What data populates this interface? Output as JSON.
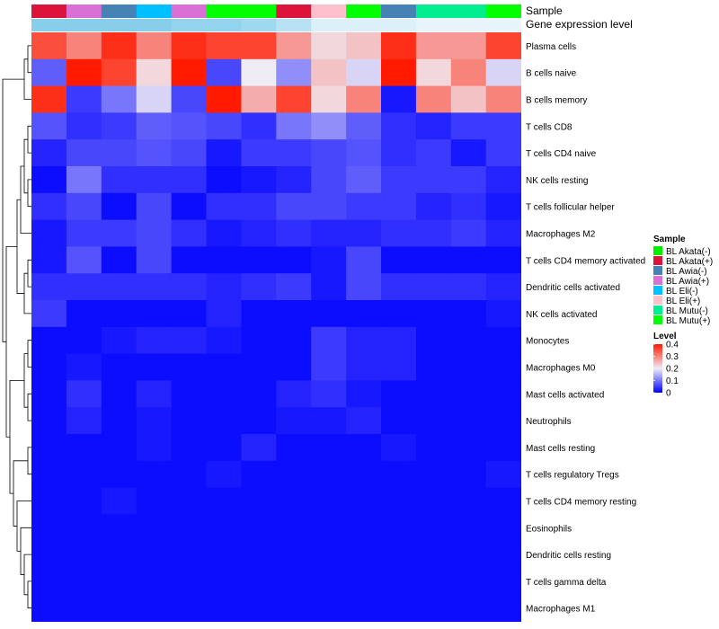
{
  "chart_data": {
    "type": "heatmap",
    "title": "",
    "annotation_labels": {
      "sample": "Sample",
      "expression": "Gene expression level"
    },
    "columns": [
      "BL Akata(+)",
      "BL Awia(+)",
      "BL Awia(-)",
      "BL Eli(-)",
      "BL Awia(+)",
      "BL Mutu(+)",
      "BL Mutu(+)",
      "BL Akata(+)",
      "BL Eli(+)",
      "BL Mutu(+)",
      "BL Awia(-)",
      "BL Mutu(-)",
      "BL Mutu(-)",
      "BL Mutu(+)"
    ],
    "column_expression": [
      0.2,
      0.2,
      0.2,
      0.2,
      0.19,
      0.19,
      0.18,
      0.16,
      0.13,
      0.13,
      0.13,
      0.12,
      0.12,
      0.12
    ],
    "rows": [
      "Plasma cells",
      "B cells naive",
      "B cells memory",
      "T cells CD8",
      "T cells CD4 naive",
      "NK cells resting",
      "T cells follicular helper",
      "Macrophages M2",
      "T cells CD4 memory activated",
      "Dendritic cells activated",
      "NK cells activated",
      "Monocytes",
      "Macrophages M0",
      "Mast cells activated",
      "Neutrophils",
      "Mast cells resting",
      "T cells regulatory  Tregs",
      "T cells CD4 memory resting",
      "Eosinophils",
      "Dendritic cells resting",
      "T cells gamma delta",
      "Macrophages M1"
    ],
    "values": [
      [
        0.35,
        0.3,
        0.38,
        0.3,
        0.38,
        0.36,
        0.36,
        0.28,
        0.22,
        0.24,
        0.38,
        0.28,
        0.28,
        0.36
      ],
      [
        0.08,
        0.4,
        0.36,
        0.22,
        0.4,
        0.06,
        0.2,
        0.12,
        0.24,
        0.18,
        0.4,
        0.22,
        0.3,
        0.18
      ],
      [
        0.38,
        0.05,
        0.1,
        0.18,
        0.06,
        0.4,
        0.26,
        0.36,
        0.22,
        0.3,
        0.02,
        0.3,
        0.24,
        0.3
      ],
      [
        0.07,
        0.04,
        0.05,
        0.08,
        0.07,
        0.06,
        0.04,
        0.1,
        0.12,
        0.08,
        0.04,
        0.03,
        0.05,
        0.05
      ],
      [
        0.03,
        0.06,
        0.06,
        0.07,
        0.06,
        0.02,
        0.05,
        0.05,
        0.06,
        0.07,
        0.04,
        0.05,
        0.02,
        0.05
      ],
      [
        0.01,
        0.1,
        0.04,
        0.04,
        0.04,
        0.01,
        0.02,
        0.03,
        0.06,
        0.08,
        0.05,
        0.05,
        0.05,
        0.03
      ],
      [
        0.04,
        0.06,
        0.01,
        0.06,
        0.01,
        0.04,
        0.04,
        0.06,
        0.06,
        0.05,
        0.05,
        0.03,
        0.04,
        0.02
      ],
      [
        0.02,
        0.05,
        0.05,
        0.06,
        0.04,
        0.02,
        0.03,
        0.04,
        0.03,
        0.03,
        0.04,
        0.04,
        0.05,
        0.03
      ],
      [
        0.02,
        0.07,
        0.01,
        0.06,
        0.01,
        0.01,
        0.01,
        0.01,
        0.02,
        0.06,
        0.01,
        0.01,
        0.01,
        0.01
      ],
      [
        0.04,
        0.04,
        0.04,
        0.04,
        0.04,
        0.03,
        0.04,
        0.05,
        0.02,
        0.06,
        0.04,
        0.04,
        0.04,
        0.03
      ],
      [
        0.05,
        0.01,
        0.01,
        0.01,
        0.01,
        0.03,
        0.01,
        0.01,
        0.01,
        0.01,
        0.01,
        0.01,
        0.01,
        0.02
      ],
      [
        0.01,
        0.01,
        0.02,
        0.03,
        0.03,
        0.02,
        0.01,
        0.01,
        0.05,
        0.03,
        0.03,
        0.01,
        0.01,
        0.01
      ],
      [
        0.01,
        0.02,
        0.01,
        0.01,
        0.01,
        0.01,
        0.01,
        0.01,
        0.05,
        0.03,
        0.03,
        0.01,
        0.01,
        0.01
      ],
      [
        0.01,
        0.04,
        0.01,
        0.03,
        0.01,
        0.01,
        0.01,
        0.03,
        0.04,
        0.02,
        0.01,
        0.01,
        0.01,
        0.01
      ],
      [
        0.01,
        0.03,
        0.01,
        0.02,
        0.01,
        0.01,
        0.01,
        0.02,
        0.02,
        0.03,
        0.01,
        0.01,
        0.01,
        0.01
      ],
      [
        0.01,
        0.01,
        0.01,
        0.02,
        0.01,
        0.01,
        0.03,
        0.01,
        0.01,
        0.01,
        0.02,
        0.01,
        0.01,
        0.01
      ],
      [
        0.01,
        0.01,
        0.01,
        0.01,
        0.01,
        0.02,
        0.01,
        0.01,
        0.01,
        0.01,
        0.01,
        0.01,
        0.01,
        0.02
      ],
      [
        0.01,
        0.01,
        0.02,
        0.01,
        0.01,
        0.01,
        0.01,
        0.01,
        0.01,
        0.01,
        0.01,
        0.01,
        0.01,
        0.01
      ],
      [
        0.01,
        0.01,
        0.01,
        0.01,
        0.01,
        0.01,
        0.01,
        0.01,
        0.01,
        0.01,
        0.01,
        0.01,
        0.01,
        0.01
      ],
      [
        0.01,
        0.01,
        0.01,
        0.01,
        0.01,
        0.01,
        0.01,
        0.01,
        0.01,
        0.01,
        0.01,
        0.01,
        0.01,
        0.01
      ],
      [
        0.01,
        0.01,
        0.01,
        0.01,
        0.01,
        0.01,
        0.01,
        0.01,
        0.01,
        0.01,
        0.01,
        0.01,
        0.01,
        0.01
      ],
      [
        0.01,
        0.01,
        0.01,
        0.01,
        0.01,
        0.01,
        0.01,
        0.01,
        0.01,
        0.01,
        0.01,
        0.01,
        0.01,
        0.01
      ]
    ],
    "color_scale": {
      "stops": [
        {
          "value": 0.0,
          "color": "#0000ff"
        },
        {
          "value": 0.2,
          "color": "#f0ecf5"
        },
        {
          "value": 0.4,
          "color": "#ff1a00"
        }
      ],
      "range": [
        0,
        0.4
      ]
    },
    "expression_scale": {
      "low": "#ffffff",
      "high": "#87ceeb",
      "range": [
        0.1,
        0.2
      ]
    },
    "sample_legend": {
      "title": "Sample",
      "entries": [
        {
          "label": "BL Akata(-)",
          "color": "#00ee00"
        },
        {
          "label": "BL Akata(+)",
          "color": "#dc143c"
        },
        {
          "label": "BL Awia(-)",
          "color": "#4682b4"
        },
        {
          "label": "BL Awia(+)",
          "color": "#da70d6"
        },
        {
          "label": "BL Eli(-)",
          "color": "#00bfff"
        },
        {
          "label": "BL Eli(+)",
          "color": "#ffc0cb"
        },
        {
          "label": "BL Mutu(-)",
          "color": "#00ee90"
        },
        {
          "label": "BL Mutu(+)",
          "color": "#00ff00"
        }
      ]
    },
    "level_legend": {
      "title": "Level",
      "ticks": [
        0.4,
        0.3,
        0.2,
        0.1,
        0
      ],
      "tick_labels": [
        "0.4",
        "0.3",
        "0.2",
        "0.1",
        "0"
      ]
    },
    "row_dendrogram": "[[[0,1],2],[[[[[3,4],[5,6]],7],[[8,9],10]],[[[11,12],[13,14]],[[15,16],[17,[18,[19,[20,21]]]]]]]]"
  }
}
